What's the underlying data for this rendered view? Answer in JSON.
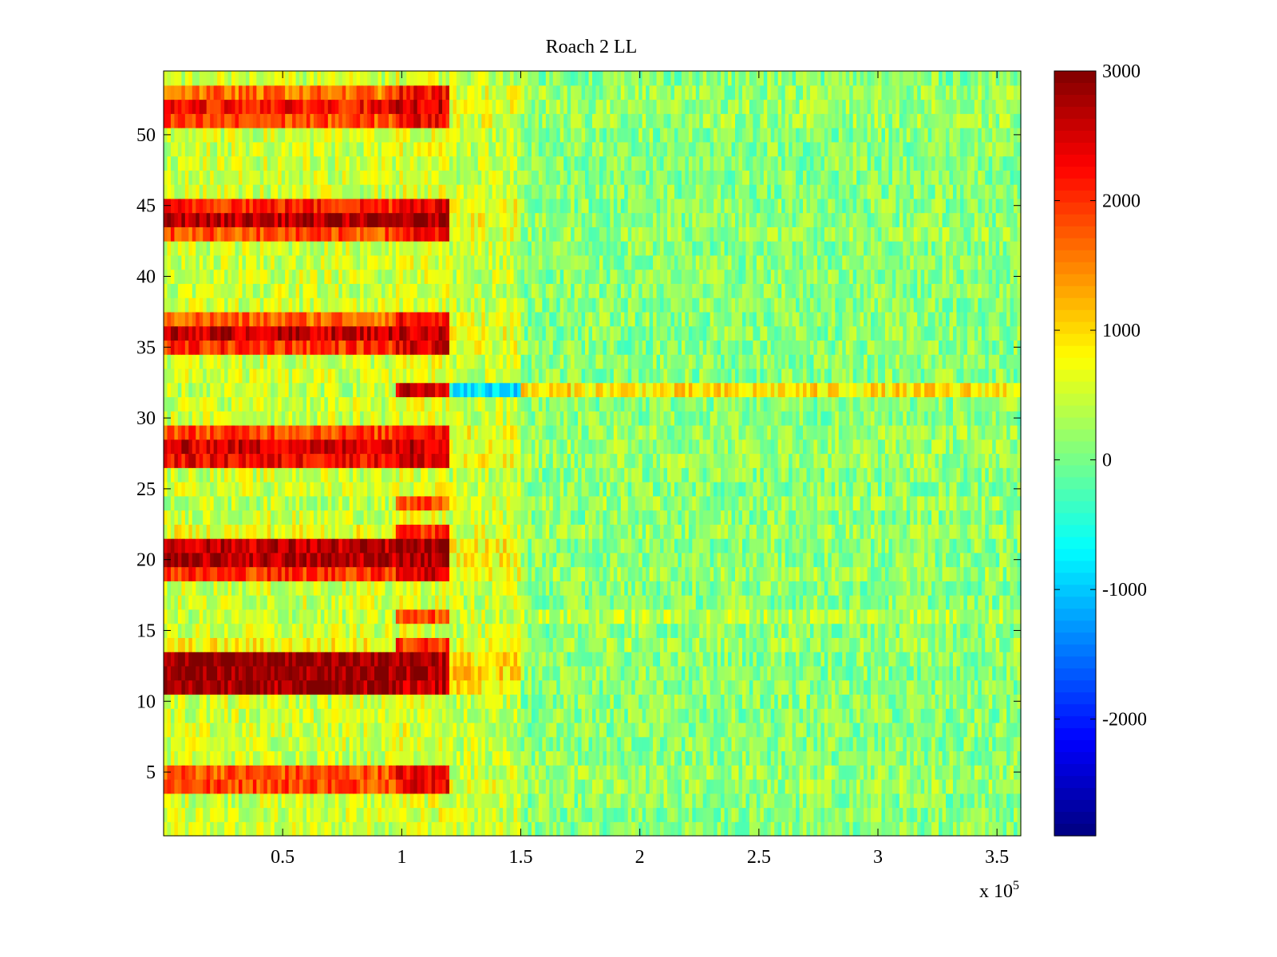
{
  "chart_data": {
    "type": "heatmap",
    "title": "Roach 2 LL",
    "xlabel": "",
    "ylabel": "",
    "x_exponent_label": {
      "base": "x 10",
      "exponent": "5"
    },
    "xlim": [
      0,
      3.6
    ],
    "ylim": [
      0.5,
      54.5
    ],
    "xticks": [
      0.5,
      1,
      1.5,
      2,
      2.5,
      3,
      3.5
    ],
    "xtick_labels": [
      "0.5",
      "1",
      "1.5",
      "2",
      "2.5",
      "3",
      "3.5"
    ],
    "yticks": [
      5,
      10,
      15,
      20,
      25,
      30,
      35,
      40,
      45,
      50
    ],
    "ytick_labels": [
      "5",
      "10",
      "15",
      "20",
      "25",
      "30",
      "35",
      "40",
      "45",
      "50"
    ],
    "rows": 54,
    "colormap": "jet",
    "colorbar": {
      "range": [
        -2900,
        3000
      ],
      "ticks": [
        3000,
        2000,
        1000,
        0,
        -1000,
        -2000
      ],
      "tick_labels": [
        "3000",
        "2000",
        "1000",
        "0",
        "-1000",
        "-2000"
      ],
      "location": "right"
    },
    "segments_x": [
      0.98,
      1.2,
      1.5,
      3.6
    ],
    "row_mean_values": {
      "4": [
        1900,
        2400,
        600,
        200
      ],
      "5": [
        1800,
        2300,
        500,
        200
      ],
      "11": [
        2800,
        2600,
        900,
        100
      ],
      "12": [
        2900,
        2800,
        1000,
        100
      ],
      "13": [
        2900,
        2800,
        900,
        100
      ],
      "14": [
        800,
        2000,
        600,
        200
      ],
      "16": [
        400,
        1800,
        500,
        400
      ],
      "19": [
        2000,
        2500,
        700,
        200
      ],
      "20": [
        2700,
        2800,
        800,
        100
      ],
      "21": [
        2600,
        2800,
        800,
        100
      ],
      "22": [
        700,
        2000,
        600,
        200
      ],
      "24": [
        400,
        1800,
        500,
        200
      ],
      "27": [
        2300,
        2500,
        700,
        200
      ],
      "28": [
        2500,
        2600,
        700,
        200
      ],
      "29": [
        1900,
        2300,
        700,
        200
      ],
      "32": [
        400,
        2500,
        -800,
        900
      ],
      "35": [
        2000,
        2400,
        600,
        100
      ],
      "36": [
        2600,
        2600,
        700,
        100
      ],
      "37": [
        1700,
        2200,
        600,
        100
      ],
      "43": [
        1800,
        2200,
        600,
        200
      ],
      "44": [
        2700,
        2800,
        800,
        100
      ],
      "45": [
        2100,
        2500,
        700,
        100
      ],
      "51": [
        1800,
        2300,
        600,
        200
      ],
      "52": [
        2200,
        2500,
        600,
        200
      ],
      "53": [
        1600,
        2200,
        600,
        200
      ]
    },
    "default_row_values": [
      500,
      600,
      450,
      100
    ]
  }
}
